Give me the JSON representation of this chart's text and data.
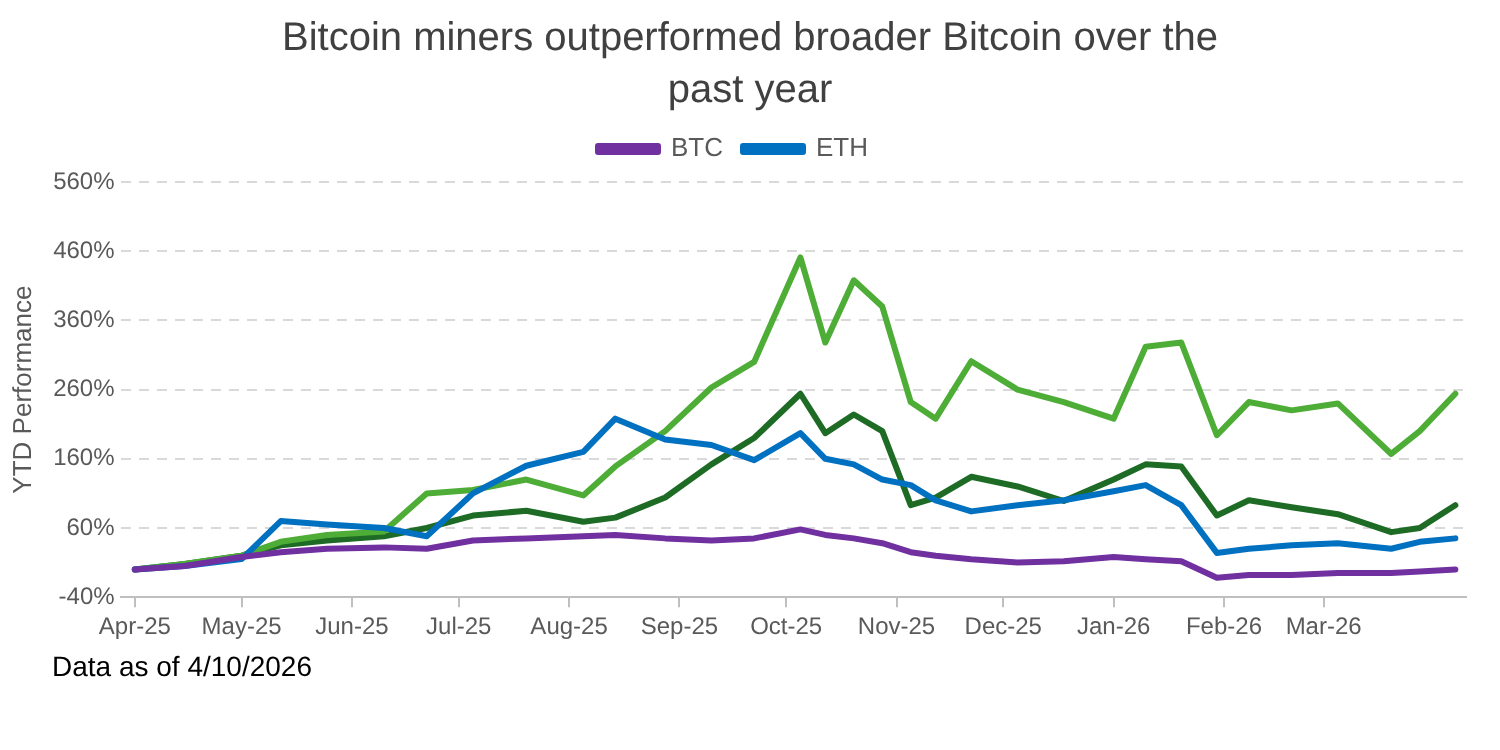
{
  "chart_data": {
    "type": "line",
    "title": "Bitcoin miners outperformed broader Bitcoin over the past year",
    "ylabel": "YTD Performance",
    "x": [
      "2025-04-01",
      "2025-04-15",
      "2025-05-01",
      "2025-05-12",
      "2025-05-25",
      "2025-06-10",
      "2025-06-22",
      "2025-07-05",
      "2025-07-20",
      "2025-08-05",
      "2025-08-14",
      "2025-08-28",
      "2025-09-10",
      "2025-09-22",
      "2025-10-05",
      "2025-10-12",
      "2025-10-20",
      "2025-10-28",
      "2025-11-05",
      "2025-11-12",
      "2025-11-22",
      "2025-12-05",
      "2025-12-18",
      "2026-01-01",
      "2026-01-10",
      "2026-01-20",
      "2026-01-30",
      "2026-02-08",
      "2026-02-20",
      "2026-03-05",
      "2026-03-20",
      "2026-03-28",
      "2026-04-07"
    ],
    "series": [
      {
        "name": "BTC",
        "color": "#7030a0",
        "values": [
          0,
          5,
          18,
          25,
          30,
          32,
          30,
          42,
          45,
          48,
          50,
          45,
          42,
          45,
          58,
          50,
          45,
          38,
          25,
          20,
          15,
          10,
          12,
          18,
          15,
          12,
          -12,
          -8,
          -8,
          -5,
          -5,
          -3,
          0
        ]
      },
      {
        "name": "ETH",
        "color": "#0070c0",
        "values": [
          0,
          5,
          15,
          70,
          65,
          60,
          48,
          110,
          150,
          170,
          218,
          188,
          180,
          158,
          197,
          160,
          152,
          130,
          122,
          100,
          84,
          93,
          100,
          113,
          122,
          93,
          24,
          30,
          35,
          38,
          30,
          40,
          45
        ]
      },
      {
        "color": "#4ead36",
        "values": [
          0,
          8,
          20,
          40,
          50,
          55,
          110,
          115,
          130,
          107,
          149,
          200,
          263,
          300,
          451,
          328,
          418,
          380,
          242,
          218,
          301,
          260,
          242,
          218,
          322,
          328,
          194,
          242,
          230,
          240,
          167,
          200,
          254
        ]
      },
      {
        "color": "#1d6b25",
        "values": [
          0,
          8,
          20,
          35,
          42,
          48,
          60,
          78,
          85,
          69,
          75,
          104,
          152,
          190,
          254,
          197,
          224,
          200,
          93,
          104,
          134,
          120,
          99,
          130,
          152,
          149,
          78,
          100,
          90,
          80,
          54,
          60,
          93
        ]
      }
    ],
    "xlim": [
      "2025-03-28",
      "2026-04-10"
    ],
    "xticks": [
      {
        "value": "2025-04-01",
        "label": "Apr-25"
      },
      {
        "value": "2025-05-01",
        "label": "May-25"
      },
      {
        "value": "2025-06-01",
        "label": "Jun-25"
      },
      {
        "value": "2025-07-01",
        "label": "Jul-25"
      },
      {
        "value": "2025-08-01",
        "label": "Aug-25"
      },
      {
        "value": "2025-09-01",
        "label": "Sep-25"
      },
      {
        "value": "2025-10-01",
        "label": "Oct-25"
      },
      {
        "value": "2025-11-01",
        "label": "Nov-25"
      },
      {
        "value": "2025-12-01",
        "label": "Dec-25"
      },
      {
        "value": "2026-01-01",
        "label": "Jan-26"
      },
      {
        "value": "2026-02-01",
        "label": "Feb-26"
      },
      {
        "value": "2026-03-01",
        "label": "Mar-26"
      }
    ],
    "ylim": [
      -40,
      560
    ],
    "yticks": [
      {
        "value": -40,
        "label": "-40%"
      },
      {
        "value": 60,
        "label": "60%"
      },
      {
        "value": 160,
        "label": "160%"
      },
      {
        "value": 260,
        "label": "260%"
      },
      {
        "value": 360,
        "label": "360%"
      },
      {
        "value": 460,
        "label": "460%"
      },
      {
        "value": 560,
        "label": "560%"
      }
    ],
    "grid": "y",
    "legend": "top",
    "marker": "none",
    "line_style": "solid",
    "annotations": [
      "Data as of 4/10/2026"
    ]
  }
}
